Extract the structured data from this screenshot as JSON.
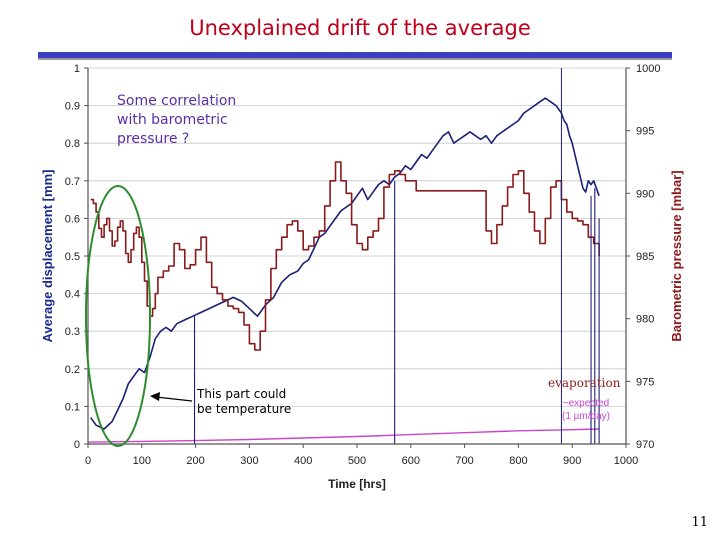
{
  "slide": {
    "title": "Unexplained drift of the average",
    "page_number": "11"
  },
  "annotations": {
    "correlation": [
      "Some correlation",
      "with barometric",
      "pressure ?"
    ],
    "temperature": [
      "This part could",
      "be temperature"
    ],
    "evaporation": "evaporation",
    "expected": [
      "~expected",
      "(1 µm/day)"
    ]
  },
  "colors": {
    "displacement": "#1a1f78",
    "pressure": "#8b1a1a",
    "expected": "#cc44cc",
    "circle": "#2e8b2e",
    "annotation_text": "#5a2ea6",
    "evaporation_text": "#8b1a1a",
    "left_axis": "#1a2a8c",
    "right_axis": "#8b1a1a"
  },
  "chart_data": {
    "type": "line",
    "xlabel": "Time [hrs]",
    "ylabel": "Average displacement [mm]",
    "y2label": "Barometric pressure [mbar]",
    "xlim": [
      0,
      1000
    ],
    "ylim": [
      0,
      1
    ],
    "y2lim": [
      970,
      1000
    ],
    "xticks": [
      "0",
      "100",
      "200",
      "300",
      "400",
      "500",
      "600",
      "700",
      "800",
      "900",
      "1000"
    ],
    "yticks": [
      "0",
      "0.1",
      "0.2",
      "0.3",
      "0.4",
      "0.5",
      "0.6",
      "0.7",
      "0.8",
      "0.9",
      "1"
    ],
    "y2ticks": [
      "970",
      "975",
      "980",
      "985",
      "990",
      "995",
      "1000"
    ],
    "grid": "horizontal",
    "series": [
      {
        "axis": "left",
        "x": [
          5,
          15,
          30,
          45,
          55,
          65,
          75,
          85,
          95,
          105,
          115,
          125,
          135,
          145,
          155,
          165,
          180,
          195,
          210,
          225,
          240,
          255,
          270,
          285,
          300,
          315,
          330,
          345,
          360,
          375,
          390,
          400,
          410,
          420,
          430,
          440,
          450,
          460,
          470,
          480,
          490,
          500,
          510,
          520,
          530,
          540,
          550,
          560,
          570,
          580,
          590,
          600,
          610,
          620,
          630,
          640,
          650,
          660,
          670,
          680,
          690,
          700,
          710,
          720,
          730,
          740,
          750,
          760,
          770,
          780,
          790,
          800,
          810,
          820,
          830,
          840,
          850,
          860,
          870,
          875,
          880,
          885,
          890,
          895,
          900,
          905,
          910,
          915,
          920,
          925,
          930,
          935,
          940,
          945,
          950
        ],
        "y": [
          0.07,
          0.05,
          0.04,
          0.06,
          0.09,
          0.12,
          0.16,
          0.18,
          0.2,
          0.19,
          0.23,
          0.28,
          0.3,
          0.31,
          0.3,
          0.32,
          0.33,
          0.34,
          0.35,
          0.36,
          0.37,
          0.38,
          0.39,
          0.38,
          0.36,
          0.34,
          0.37,
          0.39,
          0.43,
          0.45,
          0.46,
          0.48,
          0.49,
          0.52,
          0.55,
          0.56,
          0.58,
          0.6,
          0.62,
          0.63,
          0.64,
          0.66,
          0.68,
          0.65,
          0.67,
          0.69,
          0.7,
          0.69,
          0.71,
          0.72,
          0.74,
          0.73,
          0.75,
          0.77,
          0.76,
          0.78,
          0.8,
          0.82,
          0.83,
          0.8,
          0.81,
          0.82,
          0.83,
          0.82,
          0.81,
          0.82,
          0.8,
          0.82,
          0.83,
          0.84,
          0.85,
          0.86,
          0.88,
          0.89,
          0.9,
          0.91,
          0.92,
          0.91,
          0.9,
          0.89,
          0.88,
          0.86,
          0.85,
          0.82,
          0.8,
          0.77,
          0.74,
          0.71,
          0.68,
          0.67,
          0.7,
          0.69,
          0.7,
          0.68,
          0.66
        ]
      },
      {
        "axis": "right",
        "x": [
          5,
          10,
          15,
          20,
          25,
          30,
          35,
          40,
          45,
          50,
          55,
          60,
          65,
          70,
          75,
          80,
          85,
          90,
          95,
          100,
          105,
          110,
          115,
          120,
          125,
          130,
          140,
          150,
          160,
          170,
          180,
          190,
          200,
          210,
          220,
          230,
          240,
          250,
          260,
          270,
          280,
          290,
          300,
          310,
          320,
          330,
          340,
          350,
          360,
          370,
          380,
          390,
          400,
          410,
          420,
          430,
          440,
          450,
          460,
          470,
          480,
          490,
          500,
          510,
          520,
          530,
          540,
          550,
          560,
          570,
          580,
          590,
          600,
          610,
          620,
          630,
          640,
          650,
          660,
          670,
          680,
          690,
          700,
          710,
          720,
          730,
          740,
          750,
          760,
          770,
          780,
          790,
          800,
          810,
          820,
          830,
          840,
          850,
          860,
          870,
          880,
          890,
          900,
          910,
          920,
          930,
          940,
          950
        ],
        "y": [
          989.5,
          989.2,
          988.5,
          987.2,
          986.5,
          987.5,
          988.0,
          987.0,
          985.8,
          986.2,
          987.3,
          987.8,
          987.0,
          985.2,
          984.5,
          985.5,
          986.8,
          987.3,
          986.5,
          984.5,
          983.0,
          981.0,
          980.2,
          980.8,
          982.0,
          983.3,
          983.8,
          984.2,
          986.0,
          985.5,
          984.0,
          984.3,
          985.5,
          986.5,
          984.5,
          982.5,
          982.0,
          981.5,
          981.0,
          980.8,
          980.5,
          979.5,
          978.0,
          977.5,
          979.0,
          981.5,
          984.0,
          985.5,
          986.5,
          987.5,
          987.8,
          987.0,
          985.5,
          985.8,
          986.5,
          987.0,
          989.0,
          991.0,
          992.5,
          991.0,
          990.0,
          987.5,
          986.0,
          985.5,
          986.5,
          987.0,
          988.0,
          990.5,
          991.5,
          991.8,
          991.5,
          991.0,
          991.0,
          990.2,
          990.2,
          990.2,
          990.2,
          990.2,
          990.2,
          990.2,
          990.2,
          990.2,
          990.2,
          990.2,
          990.2,
          990.2,
          987.0,
          986.0,
          987.5,
          989.0,
          990.5,
          991.5,
          991.8,
          990.0,
          988.5,
          987.0,
          986.0,
          988.0,
          990.5,
          991.0,
          989.5,
          988.5,
          988.0,
          987.8,
          987.5,
          986.5,
          986.0,
          985.0
        ]
      },
      {
        "axis": "left",
        "x": [
          0,
          100,
          200,
          300,
          400,
          500,
          600,
          700,
          800,
          900,
          950
        ],
        "y": [
          0.005,
          0.007,
          0.009,
          0.012,
          0.016,
          0.02,
          0.025,
          0.03,
          0.035,
          0.038,
          0.04
        ]
      }
    ]
  }
}
